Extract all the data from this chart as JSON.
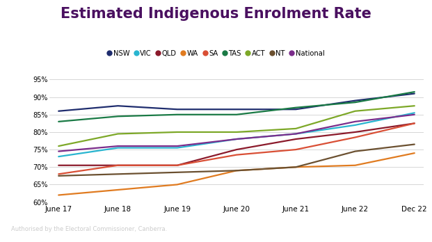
{
  "title": "Estimated Indigenous Enrolment Rate",
  "x_labels": [
    "June 17",
    "June 18",
    "June 19",
    "June 20",
    "June 21",
    "June 22",
    "Dec 22"
  ],
  "series": {
    "NSW": [
      86.0,
      87.5,
      86.5,
      86.5,
      86.5,
      89.0,
      91.0
    ],
    "VIC": [
      73.0,
      75.5,
      75.5,
      78.0,
      79.5,
      82.0,
      85.5
    ],
    "QLD": [
      70.5,
      70.5,
      70.5,
      75.0,
      78.0,
      80.0,
      82.5
    ],
    "WA": [
      62.0,
      63.5,
      65.0,
      69.0,
      70.0,
      70.5,
      74.0
    ],
    "SA": [
      68.0,
      70.5,
      70.5,
      73.5,
      75.0,
      78.5,
      82.5
    ],
    "TAS": [
      83.0,
      84.5,
      85.0,
      85.0,
      87.0,
      88.5,
      91.5
    ],
    "ACT": [
      76.0,
      79.5,
      80.0,
      80.0,
      81.0,
      86.0,
      87.5
    ],
    "NT": [
      67.5,
      68.0,
      68.5,
      69.0,
      70.0,
      74.5,
      76.5
    ],
    "National": [
      74.5,
      76.0,
      76.0,
      78.0,
      79.5,
      83.0,
      85.0
    ]
  },
  "colors": {
    "NSW": "#1f2d6e",
    "VIC": "#29b5d0",
    "QLD": "#8b1a2b",
    "WA": "#e07b20",
    "SA": "#d94f35",
    "TAS": "#1a7a45",
    "ACT": "#7da828",
    "NT": "#6b5030",
    "National": "#7b2d8b"
  },
  "ylim": [
    60,
    97
  ],
  "yticks": [
    60,
    65,
    70,
    75,
    80,
    85,
    90,
    95
  ],
  "footer": "Authorised by the Electoral Commissioner, Canberra.",
  "bg_color": "#ffffff",
  "border_color": "#6b1e8e",
  "footer_bg": "#5a1a7a",
  "title_color": "#4a1060",
  "border_width": 7
}
